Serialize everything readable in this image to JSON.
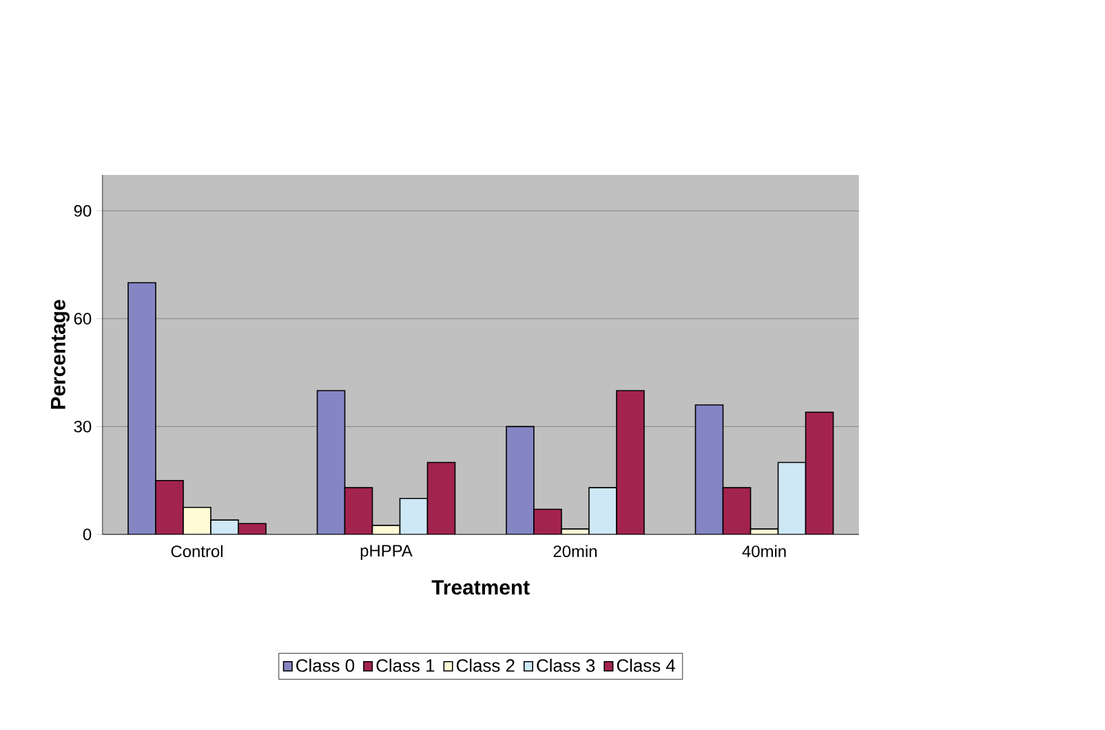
{
  "chart_data": {
    "type": "bar",
    "xlabel": "Treatment",
    "ylabel": "Percentage",
    "categories": [
      "Control",
      "pHPPA",
      "20min",
      "40min"
    ],
    "series": [
      {
        "name": "Class 0",
        "color": "#8486c4",
        "values": [
          70,
          40,
          30,
          36
        ]
      },
      {
        "name": "Class 1",
        "color": "#a3234f",
        "values": [
          15,
          13,
          7,
          13
        ]
      },
      {
        "name": "Class 2",
        "color": "#fffbd6",
        "values": [
          7.5,
          2.5,
          1.5,
          1.5
        ]
      },
      {
        "name": "Class 3",
        "color": "#cfe8f5",
        "values": [
          4,
          10,
          13,
          20
        ]
      },
      {
        "name": "Class 4",
        "color": "#a3234f",
        "values": [
          3,
          20,
          40,
          34
        ]
      }
    ],
    "ylim": [
      0,
      100
    ],
    "yticks": [
      0,
      30,
      60,
      90
    ],
    "grid": "y",
    "legend": "bottom"
  }
}
